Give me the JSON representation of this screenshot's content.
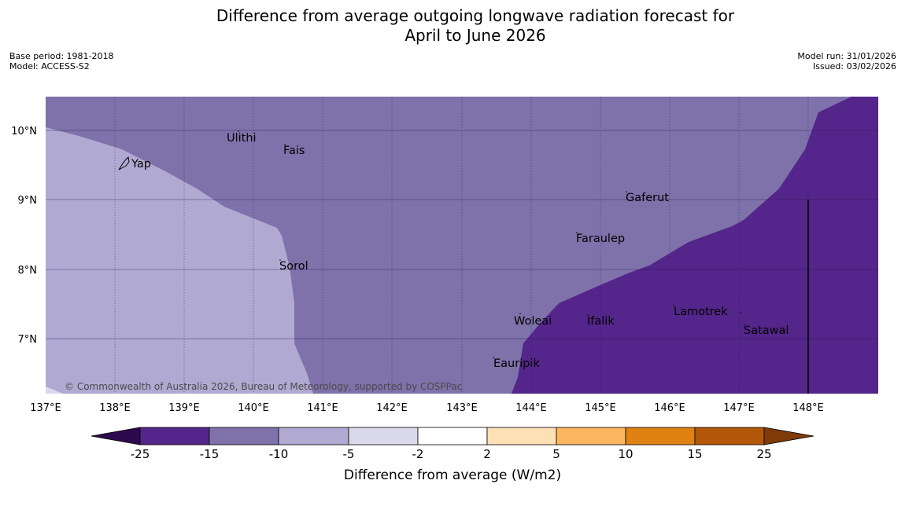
{
  "title_line1": "Difference from average outgoing longwave radiation forecast for",
  "title_line2": "April to June 2026",
  "base_period": "Base period: 1981-2018",
  "model": "Model: ACCESS-S2",
  "model_run": "Model run: 31/01/2026",
  "issued": "Issued: 03/02/2026",
  "copyright": "© Commonwealth of Australia 2026, Bureau of Meteorology, supported by COSPPac",
  "lon_ticks": [
    "137°E",
    "138°E",
    "139°E",
    "140°E",
    "141°E",
    "142°E",
    "143°E",
    "144°E",
    "145°E",
    "146°E",
    "147°E",
    "148°E"
  ],
  "lat_ticks": [
    "10°N",
    "9°N",
    "8°N",
    "7°N"
  ],
  "places": {
    "yap": "Yap",
    "ulithi": "Ulithi",
    "fais": "Fais",
    "gaferut": "Gaferut",
    "faraulep": "Faraulep",
    "sorol": "Sorol",
    "woleai": "Woleai",
    "ifalik": "Ifalik",
    "lamotrek": "Lamotrek",
    "satawal": "Satawal",
    "eauripik": "Eauripik"
  },
  "colorbar": {
    "label": "Difference from average (W/m2)",
    "ticks": [
      "-25",
      "-15",
      "-10",
      "-5",
      "-2",
      "2",
      "5",
      "10",
      "15",
      "25"
    ],
    "colors": [
      "#2d0a4e",
      "#54258a",
      "#7f71aa",
      "#b0aad2",
      "#d9d9ea",
      "#ffffff",
      "#fee0b5",
      "#fcb660",
      "#e08213",
      "#b35708",
      "#7f3b08"
    ]
  },
  "map_colors": {
    "band_-5_to_-10": "#b0aad2",
    "band_-10_to_-15": "#7f71aa",
    "band_-15_to_-25": "#54258a"
  }
}
